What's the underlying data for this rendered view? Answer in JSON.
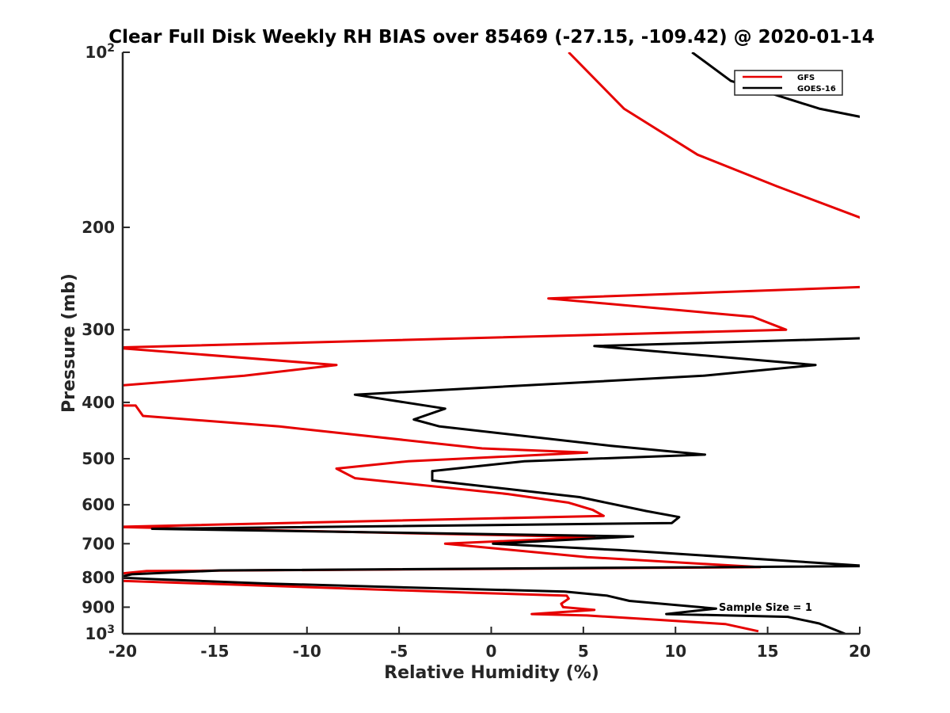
{
  "chart_data": {
    "type": "line",
    "title": "Clear Full Disk Weekly RH BIAS over 85469 (-27.15, -109.42) @ 2020-01-14",
    "xlabel": "Relative Humidity (%)",
    "ylabel": "Pressure (mb)",
    "xlim": [
      -20,
      20
    ],
    "ylim": [
      100,
      1000
    ],
    "y_scale": "log",
    "y_reversed": true,
    "grid": false,
    "legend_position": "top-right",
    "x_ticks": [
      {
        "value": -20,
        "label": "-20"
      },
      {
        "value": -15,
        "label": "-15"
      },
      {
        "value": -10,
        "label": "-10"
      },
      {
        "value": -5,
        "label": "-5"
      },
      {
        "value": 0,
        "label": "0"
      },
      {
        "value": 5,
        "label": "5"
      },
      {
        "value": 10,
        "label": "10"
      },
      {
        "value": 15,
        "label": "15"
      },
      {
        "value": 20,
        "label": "20"
      }
    ],
    "y_ticks": [
      {
        "value": 100,
        "base": "10",
        "exp": "2"
      },
      {
        "value": 200,
        "label": "200"
      },
      {
        "value": 300,
        "label": "300"
      },
      {
        "value": 400,
        "label": "400"
      },
      {
        "value": 500,
        "label": "500"
      },
      {
        "value": 600,
        "label": "600"
      },
      {
        "value": 700,
        "label": "700"
      },
      {
        "value": 800,
        "label": "800"
      },
      {
        "value": 900,
        "label": "900"
      },
      {
        "value": 1000,
        "base": "10",
        "exp": "3"
      }
    ],
    "series": [
      {
        "name": "GFS",
        "color": "#e60000",
        "points": [
          [
            4.2,
            100
          ],
          [
            7.2,
            125
          ],
          [
            11.2,
            150
          ],
          [
            15.5,
            170
          ],
          [
            20.5,
            195
          ],
          [
            20.5,
            253
          ],
          [
            3.1,
            265
          ],
          [
            14.2,
            285
          ],
          [
            16.0,
            300
          ],
          [
            -20.5,
            322
          ],
          [
            -8.4,
            345
          ],
          [
            -13.4,
            360
          ],
          [
            -20.5,
            375
          ],
          [
            -20.5,
            405
          ],
          [
            -19.3,
            405
          ],
          [
            -18.9,
            422
          ],
          [
            -11.5,
            440
          ],
          [
            -0.5,
            480
          ],
          [
            5.2,
            488
          ],
          [
            -4.5,
            505
          ],
          [
            -8.4,
            520
          ],
          [
            -7.4,
            540
          ],
          [
            0.9,
            575
          ],
          [
            4.2,
            595
          ],
          [
            5.5,
            612
          ],
          [
            6.1,
            627
          ],
          [
            -20.5,
            655
          ],
          [
            5.6,
            682
          ],
          [
            -2.5,
            700
          ],
          [
            5.2,
            738
          ],
          [
            14.6,
            768
          ],
          [
            -18.7,
            780
          ],
          [
            -20.5,
            790
          ],
          [
            -19.8,
            800
          ],
          [
            -20.5,
            808
          ],
          [
            -20.5,
            810
          ],
          [
            -1.0,
            850
          ],
          [
            4.1,
            860
          ],
          [
            4.2,
            870
          ],
          [
            3.8,
            888
          ],
          [
            3.9,
            900
          ],
          [
            5.6,
            910
          ],
          [
            2.2,
            925
          ],
          [
            5.2,
            930
          ],
          [
            8.8,
            945
          ],
          [
            12.7,
            962
          ],
          [
            14.5,
            990
          ]
        ]
      },
      {
        "name": "GOES-16",
        "color": "#000000",
        "points": [
          [
            10.9,
            100
          ],
          [
            13.0,
            112
          ],
          [
            17.8,
            125
          ],
          [
            20.5,
            130
          ],
          [
            20.5,
            310
          ],
          [
            5.6,
            320
          ],
          [
            17.6,
            345
          ],
          [
            11.5,
            360
          ],
          [
            -7.4,
            388
          ],
          [
            -2.5,
            410
          ],
          [
            -4.2,
            428
          ],
          [
            -2.8,
            440
          ],
          [
            6.5,
            475
          ],
          [
            11.6,
            492
          ],
          [
            1.8,
            505
          ],
          [
            -3.2,
            525
          ],
          [
            -3.2,
            545
          ],
          [
            4.8,
            582
          ],
          [
            8.4,
            615
          ],
          [
            10.2,
            630
          ],
          [
            9.8,
            645
          ],
          [
            -18.4,
            660
          ],
          [
            7.7,
            680
          ],
          [
            0.1,
            700
          ],
          [
            7.0,
            718
          ],
          [
            20.5,
            765
          ],
          [
            -14.7,
            778
          ],
          [
            -19.5,
            790
          ],
          [
            -20.3,
            800
          ],
          [
            -18.5,
            805
          ],
          [
            -12.0,
            820
          ],
          [
            -3.0,
            835
          ],
          [
            4.0,
            846
          ],
          [
            6.3,
            860
          ],
          [
            7.5,
            878
          ],
          [
            12.2,
            905
          ],
          [
            9.5,
            925
          ],
          [
            16.1,
            935
          ],
          [
            17.8,
            960
          ],
          [
            19.2,
            1000
          ]
        ]
      }
    ],
    "legend": [
      "GFS",
      "GOES-16"
    ],
    "annotation": "Sample Size = 1"
  }
}
